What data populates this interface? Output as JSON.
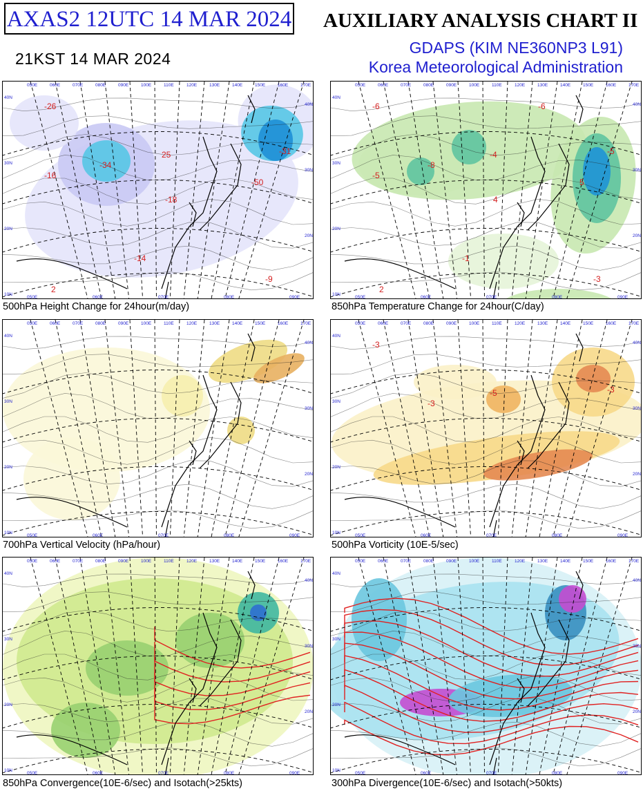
{
  "header": {
    "code_box": "AXAS2  12UTC 14 MAR 2024",
    "valid_time": "21KST 14 MAR 2024",
    "title": "AUXILIARY ANALYSIS CHART II",
    "model": "GDAPS (KIM NE360NP3 L91)",
    "agency": "Korea Meteorological Administration"
  },
  "panels": [
    {
      "caption": "500hPa Height Change for 24hour(m/day)",
      "palette": "blue-purple",
      "labels": [
        "-34",
        "-26",
        "-31",
        "25",
        "-18",
        "-50",
        "-16",
        "-14",
        "-9",
        "2"
      ]
    },
    {
      "caption": "850hPa Temperature Change for 24hour(C/day)",
      "palette": "green",
      "labels": [
        "-8",
        "-6",
        "-5",
        "-4",
        "4",
        "5",
        "-5",
        "-1",
        "-3",
        "2",
        "-6"
      ]
    },
    {
      "caption": "700hPa Vertical Velocity (hPa/hour)",
      "palette": "yellow",
      "labels": []
    },
    {
      "caption": "500hPa Vorticity (10E-5/sec)",
      "palette": "orange",
      "labels": [
        "-3",
        "-3",
        "-3",
        "-5"
      ]
    },
    {
      "caption": "850hPa Convergence(10E-6/sec) and Isotach(>25kts)",
      "palette": "green-yellow",
      "labels": []
    },
    {
      "caption": "300hPa Divergence(10E-6/sec) and Isotach(>50kts)",
      "palette": "cyan-red",
      "labels": []
    }
  ],
  "lon_labels": [
    "050E",
    "060E",
    "070E",
    "080E",
    "090E",
    "100E",
    "110E",
    "120E",
    "130E",
    "140E",
    "150E",
    "160E",
    "170E"
  ],
  "lat_labels": [
    "40N",
    "30N",
    "20N",
    "10N"
  ],
  "colors": {
    "title_blue": "#1f1fcf",
    "label_red": "#d42020",
    "isotach_red": "#e02020"
  }
}
